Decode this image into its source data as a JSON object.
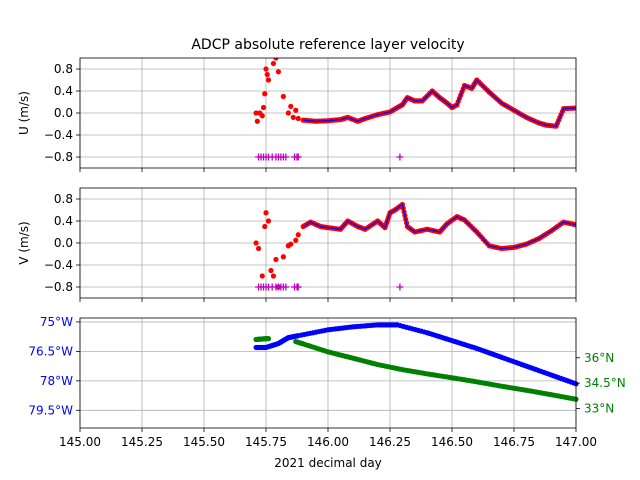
{
  "chart_data": [
    {
      "type": "scatter",
      "panel": "u",
      "title": "ADCP absolute reference layer velocity",
      "ylabel": "U (m/s)",
      "xlim": [
        145.0,
        147.0
      ],
      "ylim": [
        -1.0,
        1.0
      ],
      "yticks": [
        0.8,
        0.4,
        0.0,
        -0.4,
        -0.8
      ],
      "ytick_labels": [
        "0.8",
        "0.4",
        "0.0",
        "−0.4",
        "−0.8"
      ],
      "grid": true,
      "series": [
        {
          "role": "raw_points",
          "color": "#ff0000",
          "x": [
            145.71,
            145.715,
            145.725,
            145.735,
            145.74,
            145.745,
            145.75,
            145.755,
            145.76,
            145.78,
            145.79,
            145.8,
            145.82,
            145.84,
            145.85,
            145.86,
            145.87,
            145.88
          ],
          "y": [
            0.0,
            -0.15,
            0.0,
            -0.05,
            0.1,
            0.35,
            0.8,
            0.7,
            0.6,
            0.9,
            1.0,
            0.75,
            0.3,
            0.0,
            0.12,
            -0.08,
            0.05,
            -0.1
          ]
        },
        {
          "role": "smoothed",
          "color": "#0000ff",
          "x": [
            145.9,
            145.95,
            146.0,
            146.05,
            146.08,
            146.12,
            146.15,
            146.2,
            146.25,
            146.28,
            146.3,
            146.32,
            146.35,
            146.38,
            146.42,
            146.45,
            146.48,
            146.5,
            146.52,
            146.55,
            146.58,
            146.6,
            146.65,
            146.7,
            146.75,
            146.8,
            146.85,
            146.88,
            146.92,
            146.95,
            147.0
          ],
          "y": [
            -0.13,
            -0.15,
            -0.14,
            -0.12,
            -0.08,
            -0.15,
            -0.1,
            -0.03,
            0.02,
            0.1,
            0.15,
            0.28,
            0.22,
            0.22,
            0.4,
            0.28,
            0.18,
            0.1,
            0.15,
            0.5,
            0.45,
            0.6,
            0.38,
            0.18,
            0.05,
            -0.08,
            -0.18,
            -0.22,
            -0.24,
            0.08,
            0.09
          ]
        },
        {
          "role": "flag_markers",
          "color": "#bf00bf",
          "x": [
            145.72,
            145.73,
            145.74,
            145.75,
            145.76,
            145.775,
            145.79,
            145.8,
            145.81,
            145.82,
            145.83,
            145.865,
            145.875,
            145.88,
            146.29
          ],
          "y": [
            -0.8,
            -0.8,
            -0.8,
            -0.8,
            -0.8,
            -0.8,
            -0.8,
            -0.8,
            -0.8,
            -0.8,
            -0.8,
            -0.8,
            -0.8,
            -0.8,
            -0.8
          ]
        }
      ]
    },
    {
      "type": "scatter",
      "panel": "v",
      "ylabel": "V (m/s)",
      "xlim": [
        145.0,
        147.0
      ],
      "ylim": [
        -1.0,
        1.0
      ],
      "yticks": [
        0.8,
        0.4,
        0.0,
        -0.4,
        -0.8
      ],
      "ytick_labels": [
        "0.8",
        "0.4",
        "0.0",
        "−0.4",
        "−0.8"
      ],
      "grid": true,
      "series": [
        {
          "role": "raw_points",
          "color": "#ff0000",
          "x": [
            145.71,
            145.72,
            145.735,
            145.745,
            145.75,
            145.76,
            145.77,
            145.78,
            145.79,
            145.8,
            145.82,
            145.84,
            145.85,
            145.87,
            145.88
          ],
          "y": [
            0.0,
            -0.1,
            -0.6,
            0.3,
            0.55,
            0.4,
            -0.5,
            -0.6,
            -0.3,
            -0.8,
            -0.25,
            -0.05,
            -0.02,
            0.05,
            0.15
          ]
        },
        {
          "role": "smoothed",
          "color": "#0000ff",
          "x": [
            145.9,
            145.93,
            145.97,
            146.0,
            146.05,
            146.08,
            146.12,
            146.15,
            146.2,
            146.23,
            146.25,
            146.27,
            146.3,
            146.32,
            146.35,
            146.4,
            146.45,
            146.48,
            146.52,
            146.55,
            146.6,
            146.65,
            146.7,
            146.75,
            146.8,
            146.85,
            146.9,
            146.95,
            147.0
          ],
          "y": [
            0.3,
            0.38,
            0.3,
            0.28,
            0.25,
            0.4,
            0.3,
            0.25,
            0.4,
            0.28,
            0.55,
            0.6,
            0.7,
            0.3,
            0.2,
            0.25,
            0.2,
            0.35,
            0.48,
            0.42,
            0.2,
            -0.05,
            -0.1,
            -0.08,
            -0.02,
            0.08,
            0.22,
            0.38,
            0.33
          ]
        },
        {
          "role": "flag_markers",
          "color": "#bf00bf",
          "x": [
            145.72,
            145.73,
            145.74,
            145.75,
            145.76,
            145.775,
            145.79,
            145.8,
            145.81,
            145.82,
            145.83,
            145.865,
            145.875,
            145.88,
            146.29
          ],
          "y": [
            -0.8,
            -0.8,
            -0.8,
            -0.8,
            -0.8,
            -0.8,
            -0.8,
            -0.8,
            -0.8,
            -0.8,
            -0.8,
            -0.8,
            -0.8,
            -0.8,
            -0.8
          ]
        }
      ]
    },
    {
      "type": "scatter",
      "panel": "position",
      "xlabel": "2021 decimal day",
      "xlim": [
        145.0,
        147.0
      ],
      "xticks": [
        145.0,
        145.25,
        145.5,
        145.75,
        146.0,
        146.25,
        146.5,
        146.75,
        147.0
      ],
      "xtick_labels": [
        "145.00",
        "145.25",
        "145.50",
        "145.75",
        "146.00",
        "146.25",
        "146.50",
        "146.75",
        "147.00"
      ],
      "grid": true,
      "left_axis": {
        "color": "#0000ff",
        "ylim": [
          -74.8,
          -80.4
        ],
        "yticks": [
          -75.0,
          -76.5,
          -78.0,
          -79.5
        ],
        "ytick_labels": [
          "75°W",
          "76.5°W",
          "78°W",
          "79.5°W"
        ]
      },
      "right_axis": {
        "color": "#008000",
        "ylim": [
          38.35,
          31.85
        ],
        "yticks": [
          36.0,
          34.5,
          33.0
        ],
        "ytick_labels": [
          "36°N",
          "34.5°N",
          "33°N"
        ]
      },
      "series": [
        {
          "role": "longitude",
          "axis": "left",
          "color": "#0000ff",
          "x": [
            145.71,
            145.75,
            145.8,
            145.84,
            145.88,
            146.0,
            146.1,
            146.2,
            146.28,
            146.4,
            146.5,
            146.6,
            146.7,
            146.8,
            146.9,
            147.0
          ],
          "y": [
            -76.3,
            -76.3,
            -76.1,
            -75.8,
            -75.7,
            -75.4,
            -75.25,
            -75.15,
            -75.15,
            -75.55,
            -75.95,
            -76.35,
            -76.8,
            -77.25,
            -77.7,
            -78.15
          ]
        },
        {
          "role": "latitude",
          "axis": "right",
          "color": "#008000",
          "x": [
            145.71,
            145.75,
            145.8,
            145.85,
            145.9,
            146.0,
            146.1,
            146.2,
            146.3,
            146.4,
            146.5,
            146.6,
            146.7,
            146.8,
            146.9,
            147.0
          ],
          "y": [
            37.08,
            37.13,
            37.13,
            37.05,
            36.82,
            36.35,
            35.98,
            35.6,
            35.3,
            35.05,
            34.82,
            34.58,
            34.32,
            34.08,
            33.82,
            33.55
          ]
        }
      ]
    }
  ]
}
